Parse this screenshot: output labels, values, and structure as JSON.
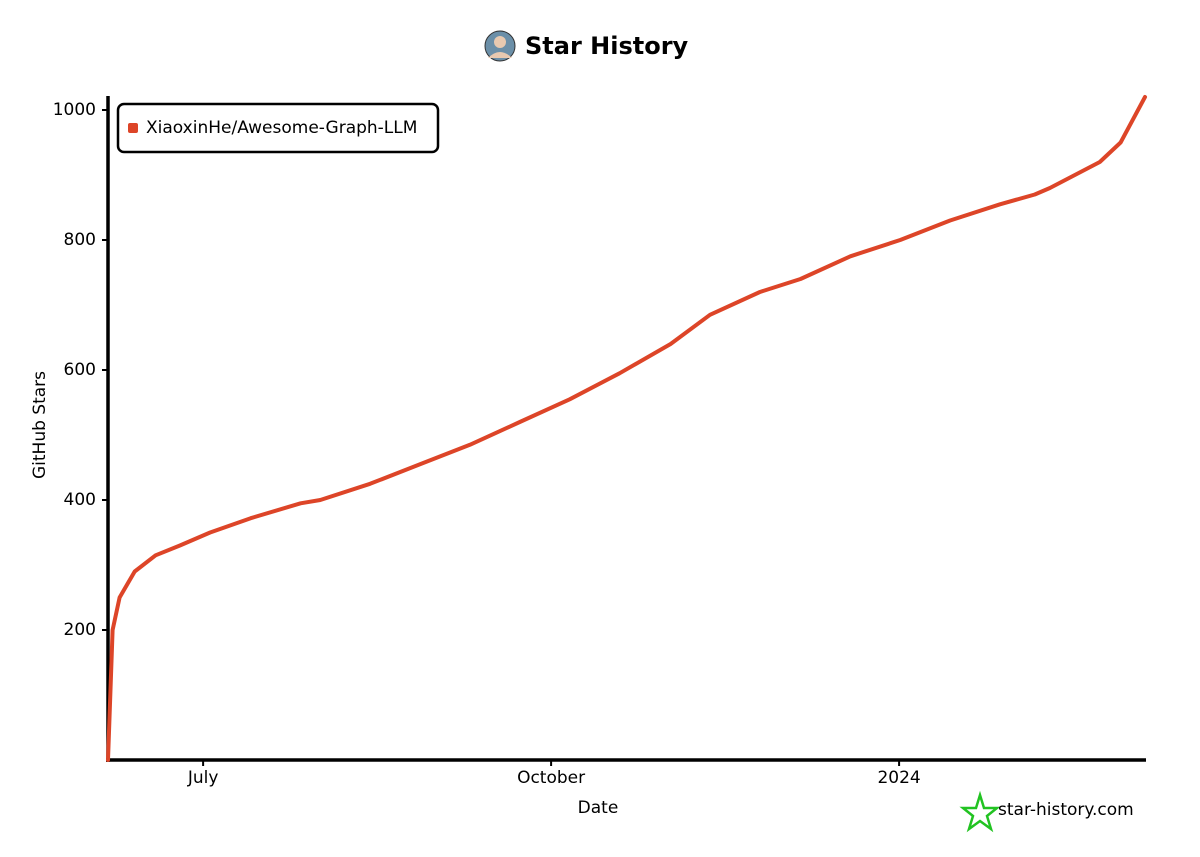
{
  "chart_data": {
    "type": "line",
    "title": "Star History",
    "x_label": "Date",
    "y_label": "GitHub Stars",
    "source": "star-history.com",
    "x": [
      6.18,
      6.22,
      6.28,
      6.41,
      6.59,
      6.8,
      7.06,
      7.41,
      7.84,
      8.01,
      8.44,
      8.87,
      9.3,
      9.73,
      10.16,
      10.59,
      11.03,
      11.37,
      11.8,
      12.15,
      12.58,
      13.01,
      13.44,
      13.87,
      14.17,
      14.3,
      14.73,
      14.91,
      15.12
    ],
    "series": [
      {
        "name": "XiaoxinHe/Awesome-Graph-LLM",
        "color": "#dd4528",
        "values": [
          0,
          200,
          250,
          290,
          315,
          330,
          350,
          372,
          395,
          400,
          425,
          455,
          485,
          520,
          555,
          595,
          640,
          685,
          720,
          740,
          775,
          800,
          830,
          855,
          870,
          880,
          920,
          950,
          1020
        ]
      }
    ],
    "xlim": [
      6.18,
      15.12
    ],
    "xticks": [
      {
        "value": 7,
        "label": "July"
      },
      {
        "value": 10,
        "label": "October"
      },
      {
        "value": 13,
        "label": "2024"
      }
    ],
    "ylim": [
      0,
      1020
    ],
    "yticks": [
      200,
      400,
      600,
      800,
      1000
    ],
    "legend": "top-left"
  }
}
